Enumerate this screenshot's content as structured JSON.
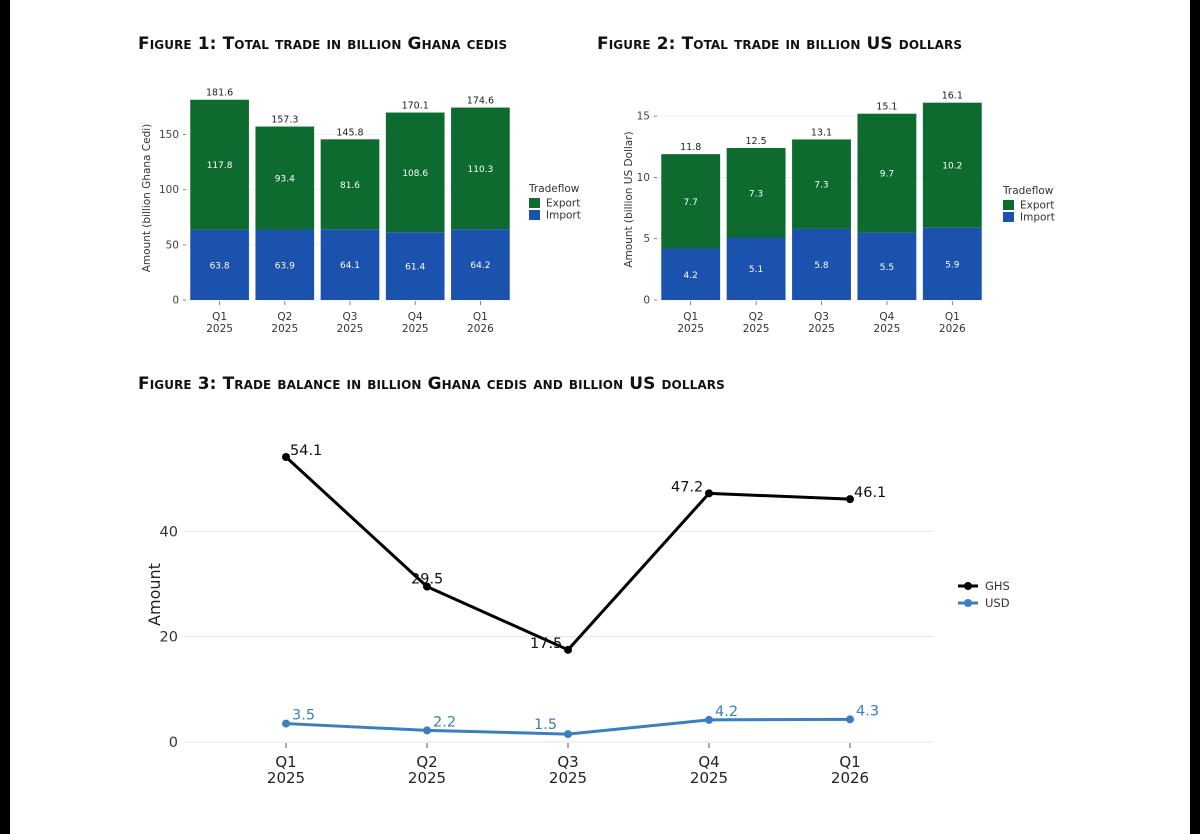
{
  "figures": {
    "fig1_title": "Figure 1: Total trade in billion Ghana cedis",
    "fig2_title": "Figure 2: Total trade in billion US dollars",
    "fig3_title": "Figure 3: Trade balance in billion Ghana cedis and billion US dollars"
  },
  "colors": {
    "export": "#0e6b2f",
    "import": "#1b52ad",
    "ghs": "#000000",
    "usd": "#3a7fc2",
    "grid": "#e6e6e6"
  },
  "chart_data": [
    {
      "type": "bar",
      "stacked": true,
      "categories": [
        [
          "Q1",
          "2025"
        ],
        [
          "Q2",
          "2025"
        ],
        [
          "Q3",
          "2025"
        ],
        [
          "Q4",
          "2025"
        ],
        [
          "Q1",
          "2026"
        ]
      ],
      "series": [
        {
          "name": "Import",
          "values": [
            63.8,
            63.9,
            64.1,
            61.4,
            64.2
          ]
        },
        {
          "name": "Export",
          "values": [
            117.8,
            93.4,
            81.6,
            108.6,
            110.3
          ]
        }
      ],
      "totals": [
        "181.6",
        "157.3",
        "145.8",
        "170.1",
        "174.6"
      ],
      "ylabel": "Amount (billion Ghana Cedi)",
      "yticks": [
        0,
        50,
        100,
        150
      ],
      "ylim": [
        0,
        185
      ],
      "legend_title": "Tradeflow",
      "legend": [
        "Export",
        "Import"
      ],
      "legend_position": "right"
    },
    {
      "type": "bar",
      "stacked": true,
      "categories": [
        [
          "Q1",
          "2025"
        ],
        [
          "Q2",
          "2025"
        ],
        [
          "Q3",
          "2025"
        ],
        [
          "Q4",
          "2025"
        ],
        [
          "Q1",
          "2026"
        ]
      ],
      "series": [
        {
          "name": "Import",
          "values": [
            4.2,
            5.1,
            5.8,
            5.5,
            5.9
          ]
        },
        {
          "name": "Export",
          "values": [
            7.7,
            7.3,
            7.3,
            9.7,
            10.2
          ]
        }
      ],
      "totals": [
        "11.8",
        "12.5",
        "13.1",
        "15.1",
        "16.1"
      ],
      "ylabel": "Amount (billion US Dollar)",
      "yticks": [
        0,
        5,
        10,
        15
      ],
      "ylim": [
        0,
        16.4
      ],
      "legend_title": "Tradeflow",
      "legend": [
        "Export",
        "Import"
      ],
      "legend_position": "right"
    },
    {
      "type": "line",
      "categories": [
        [
          "Q1",
          "2025"
        ],
        [
          "Q2",
          "2025"
        ],
        [
          "Q3",
          "2025"
        ],
        [
          "Q4",
          "2025"
        ],
        [
          "Q1",
          "2026"
        ]
      ],
      "series": [
        {
          "name": "GHS",
          "values": [
            54.1,
            29.5,
            17.5,
            47.2,
            46.1
          ],
          "labels": [
            "54.1",
            "29.5",
            "17.5",
            "47.2",
            "46.1"
          ]
        },
        {
          "name": "USD",
          "values": [
            3.5,
            2.2,
            1.5,
            4.2,
            4.3
          ],
          "labels": [
            "3.5",
            "2.2",
            "1.5",
            "4.2",
            "4.3"
          ]
        }
      ],
      "ylabel": "Amount",
      "yticks": [
        0,
        20,
        40
      ],
      "ylim": [
        0,
        56
      ],
      "grid": true,
      "legend_position": "right"
    }
  ]
}
